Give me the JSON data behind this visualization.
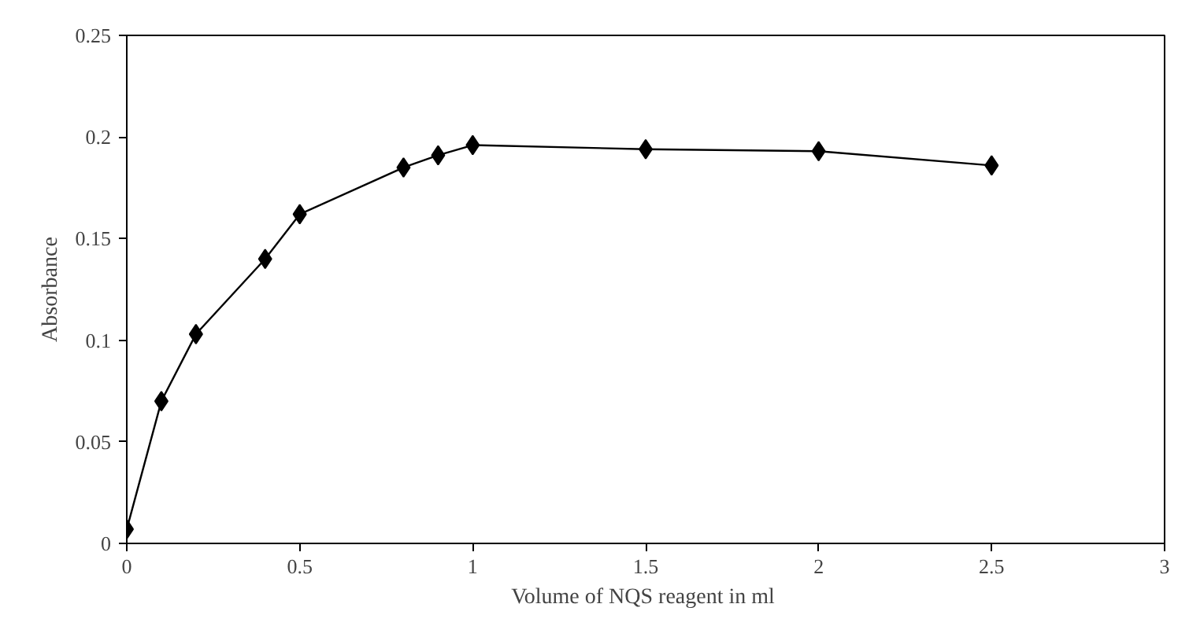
{
  "chart_data": {
    "type": "line",
    "xlabel": "Volume of  NQS reagent in ml",
    "ylabel": "Absorbance",
    "x": [
      0,
      0.1,
      0.2,
      0.4,
      0.5,
      0.8,
      0.9,
      1.0,
      1.5,
      2.0,
      2.5
    ],
    "series": [
      {
        "color": "#000000",
        "values": [
          0.007,
          0.07,
          0.103,
          0.14,
          0.162,
          0.185,
          0.191,
          0.196,
          0.194,
          0.193,
          0.186
        ]
      }
    ],
    "xlim": [
      0,
      3
    ],
    "xticks": [
      {
        "value": 0,
        "label": "0"
      },
      0.5,
      {
        "value": 1,
        "label": "1"
      },
      1.5,
      {
        "value": 2,
        "label": "2"
      },
      2.5,
      {
        "value": 3,
        "label": "3"
      }
    ],
    "ylim": [
      0,
      0.25
    ],
    "yticks": [
      {
        "value": 0,
        "label": "0"
      },
      0.05,
      0.1,
      0.15,
      0.2,
      0.25
    ],
    "grid": false,
    "marker": "diamond",
    "line_style": "solid"
  }
}
